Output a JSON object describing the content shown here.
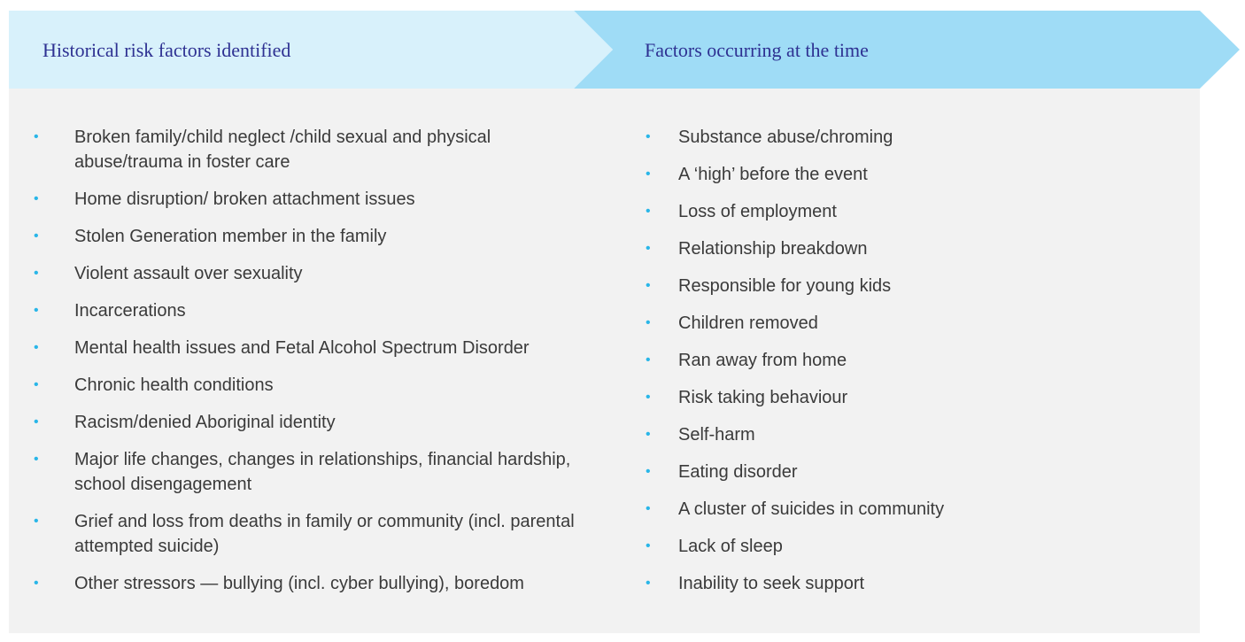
{
  "columns": [
    {
      "title": "Historical risk factors identified",
      "items": [
        "Broken family/child neglect /child sexual and physical abuse/trauma in foster care",
        "Home disruption/ broken attachment issues",
        "Stolen Generation member in the family",
        "Violent assault over sexuality",
        "Incarcerations",
        "Mental health issues and Fetal Alcohol Spectrum Disorder",
        "Chronic health conditions",
        "Racism/denied Aboriginal identity",
        "Major life changes, changes in relationships, financial hardship, school disengagement",
        "Grief and loss from deaths in family or community (incl. parental attempted suicide)",
        "Other stressors — bullying (incl. cyber bullying), boredom"
      ]
    },
    {
      "title": "Factors occurring at the time",
      "items": [
        "Substance abuse/chroming",
        "A ‘high’ before the event",
        "Loss of employment",
        "Relationship breakdown",
        "Responsible for young kids",
        "Children removed",
        "Ran away from home",
        "Risk taking behaviour",
        "Self-harm",
        "Eating disorder",
        "A cluster of suicides in community",
        "Lack of sleep",
        "Inability to seek support"
      ]
    }
  ]
}
